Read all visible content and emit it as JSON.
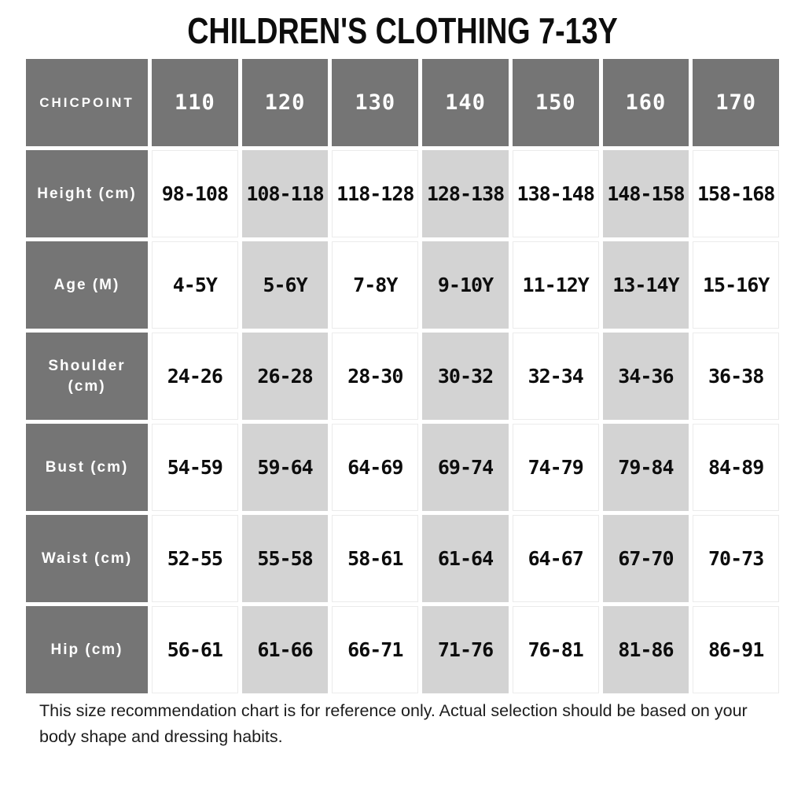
{
  "chart_data": {
    "type": "table",
    "title": "CHILDREN'S CLOTHING 7-13Y",
    "brand": "CHICPOINT",
    "columns": [
      "110",
      "120",
      "130",
      "140",
      "150",
      "160",
      "170"
    ],
    "rows": [
      {
        "label": "Height (cm)",
        "values": [
          "98-108",
          "108-118",
          "118-128",
          "128-138",
          "138-148",
          "148-158",
          "158-168"
        ]
      },
      {
        "label": "Age (M)",
        "values": [
          "4-5Y",
          "5-6Y",
          "7-8Y",
          "9-10Y",
          "11-12Y",
          "13-14Y",
          "15-16Y"
        ]
      },
      {
        "label": "Shoulder (cm)",
        "values": [
          "24-26",
          "26-28",
          "28-30",
          "30-32",
          "32-34",
          "34-36",
          "36-38"
        ]
      },
      {
        "label": "Bust (cm)",
        "values": [
          "54-59",
          "59-64",
          "64-69",
          "69-74",
          "74-79",
          "79-84",
          "84-89"
        ]
      },
      {
        "label": "Waist (cm)",
        "values": [
          "52-55",
          "55-58",
          "58-61",
          "61-64",
          "64-67",
          "67-70",
          "70-73"
        ]
      },
      {
        "label": "Hip (cm)",
        "values": [
          "56-61",
          "61-66",
          "66-71",
          "71-76",
          "76-81",
          "81-86",
          "86-91"
        ]
      }
    ],
    "layout_hints": {
      "alternating_shaded_columns": [
        "120",
        "140",
        "160"
      ],
      "header_style": "dark-gray-with-white-text"
    }
  },
  "footer": {
    "note": "This size recommendation chart is for reference only. Actual selection should be based on your body shape and dressing habits."
  },
  "colors": {
    "header_bg": "#757575",
    "header_text": "#ffffff",
    "alt_column_bg": "#d3d3d3",
    "white_cell_border": "#ebebeb",
    "body_text": "#0d0d0d"
  }
}
